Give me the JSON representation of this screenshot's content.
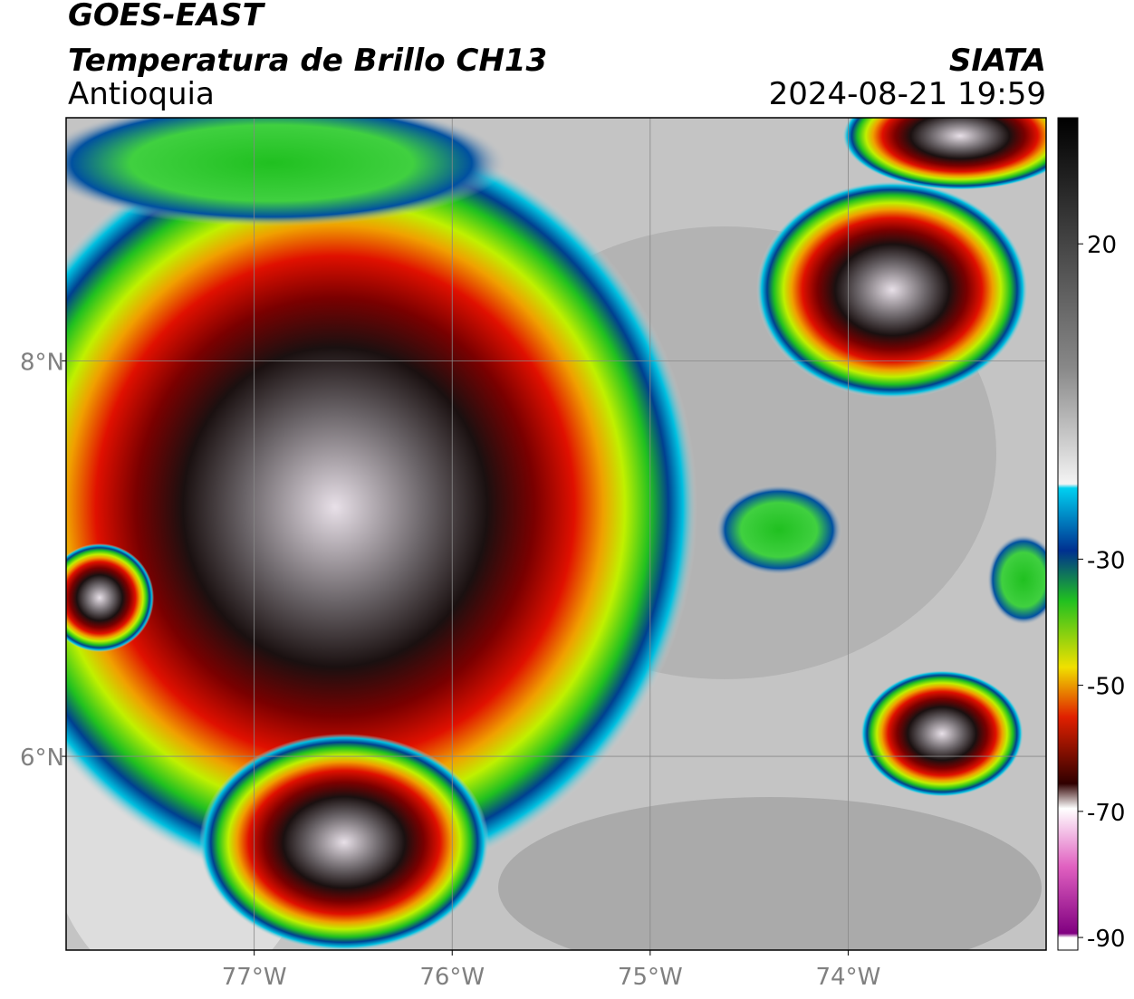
{
  "header": {
    "title": "GOES-EAST",
    "subtitle": "Temperatura de Brillo CH13",
    "region": "Antioquia",
    "source": "SIATA",
    "datetime": "2024-08-21 19:59"
  },
  "map": {
    "xlim": [
      -77.95,
      -73.0
    ],
    "ylim": [
      5.02,
      9.23
    ],
    "xticks": [
      {
        "value": -77,
        "label": "77°W"
      },
      {
        "value": -76,
        "label": "76°W"
      },
      {
        "value": -75,
        "label": "75°W"
      },
      {
        "value": -74,
        "label": "74°W"
      }
    ],
    "yticks": [
      {
        "value": 8,
        "label": "8°N"
      },
      {
        "value": 6,
        "label": "6°N"
      }
    ]
  },
  "colorbar": {
    "lim": [
      -92,
      40
    ],
    "ticks": [
      20,
      -30,
      -50,
      -70,
      -90
    ]
  }
}
